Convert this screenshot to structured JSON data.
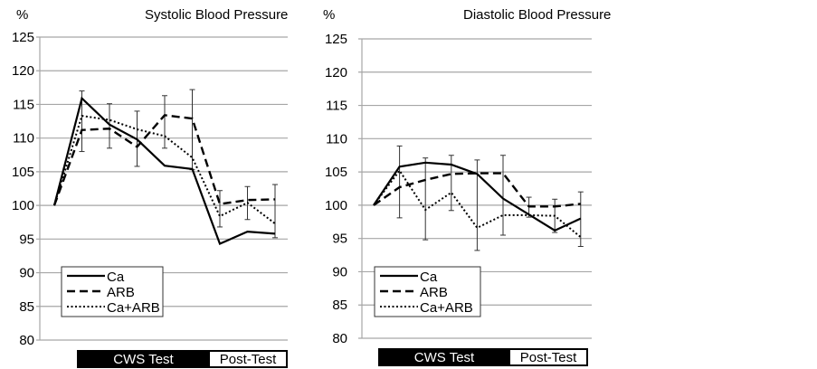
{
  "chart_data": [
    {
      "type": "line",
      "title": "Systolic Blood Pressure",
      "ylabel": "%",
      "xlabel": "",
      "ylim": [
        80,
        125
      ],
      "yticks": [
        80,
        85,
        90,
        95,
        100,
        105,
        110,
        115,
        120,
        125
      ],
      "grid": true,
      "legend": "bottom-left",
      "x": [
        0,
        1,
        2,
        3,
        4,
        5,
        6,
        7,
        8
      ],
      "phases": [
        {
          "label": "CWS Test",
          "style": "dark"
        },
        {
          "label": "Post-Test",
          "style": "light"
        }
      ],
      "series": [
        {
          "name": "Ca",
          "dash": "solid",
          "values": [
            100,
            115.9,
            112.0,
            109.8,
            105.9,
            105.4,
            94.3,
            96.1,
            95.8
          ],
          "err_high": [
            null,
            117.0,
            115.1,
            114.0,
            116.3,
            117.2,
            102.2,
            102.8,
            103.1
          ],
          "err_low": [
            null,
            108.0,
            108.5,
            105.8,
            108.5,
            105.3,
            96.8,
            97.9,
            95.2
          ]
        },
        {
          "name": "ARB",
          "dash": "dashed",
          "values": [
            100,
            111.2,
            111.4,
            108.7,
            113.4,
            112.9,
            100.2,
            100.8,
            100.9
          ],
          "err_high": [],
          "err_low": []
        },
        {
          "name": "Ca+ARB",
          "dash": "dotted",
          "values": [
            100,
            113.3,
            112.7,
            111.3,
            110.3,
            107.1,
            98.4,
            100.4,
            97.3
          ],
          "err_high": [],
          "err_low": []
        }
      ]
    },
    {
      "type": "line",
      "title": "Diastolic Blood Pressure",
      "ylabel": "%",
      "xlabel": "",
      "ylim": [
        80,
        125
      ],
      "yticks": [
        80,
        85,
        90,
        95,
        100,
        105,
        110,
        115,
        120,
        125
      ],
      "grid": true,
      "legend": "bottom-left",
      "x": [
        0,
        1,
        2,
        3,
        4,
        5,
        6,
        7,
        8
      ],
      "phases": [
        {
          "label": "CWS Test",
          "style": "dark"
        },
        {
          "label": "Post-Test",
          "style": "light"
        }
      ],
      "series": [
        {
          "name": "Ca",
          "dash": "solid",
          "values": [
            100,
            105.8,
            106.4,
            106.1,
            104.7,
            101.0,
            98.6,
            96.2,
            98.0
          ],
          "err_high": [
            null,
            108.9,
            107.1,
            107.5,
            106.8,
            107.5,
            101.2,
            100.9,
            102.0
          ],
          "err_low": [
            null,
            98.1,
            94.8,
            99.2,
            93.2,
            95.5,
            98.2,
            95.9,
            93.8
          ]
        },
        {
          "name": "ARB",
          "dash": "dashed",
          "values": [
            100,
            102.7,
            103.8,
            104.7,
            104.8,
            104.8,
            99.8,
            99.8,
            100.2
          ],
          "err_high": [],
          "err_low": []
        },
        {
          "name": "Ca+ARB",
          "dash": "dotted",
          "values": [
            100,
            105.2,
            99.3,
            101.9,
            96.6,
            98.5,
            98.5,
            98.4,
            95.2
          ],
          "err_high": [],
          "err_low": []
        }
      ]
    }
  ]
}
